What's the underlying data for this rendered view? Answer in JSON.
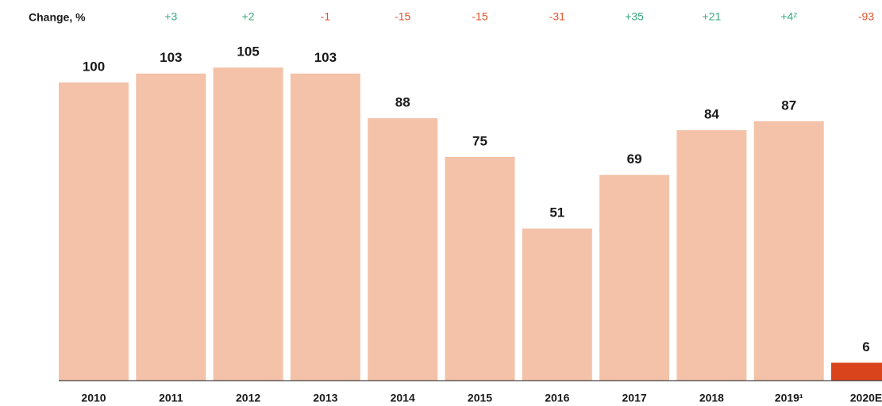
{
  "chart_data": {
    "type": "bar",
    "change_label": "Change, %",
    "categories": [
      "2010",
      "2011",
      "2012",
      "2013",
      "2014",
      "2015",
      "2016",
      "2017",
      "2018",
      "2019¹",
      "2020E"
    ],
    "values": [
      100,
      103,
      105,
      103,
      88,
      75,
      51,
      69,
      84,
      87,
      6
    ],
    "colors": [
      "#f3c2a9",
      "#f3c2a9",
      "#f3c2a9",
      "#f3c2a9",
      "#f3c2a9",
      "#f3c2a9",
      "#f3c2a9",
      "#f3c2a9",
      "#f3c2a9",
      "#f3c2a9",
      "#d9441c"
    ],
    "changes": [
      null,
      "+3",
      "+2",
      "-1",
      "-15",
      "-15",
      "-31",
      "+35",
      "+21",
      "+4²",
      "-93"
    ],
    "positive_color": "#3aaa7e",
    "negative_color": "#e0532b"
  }
}
